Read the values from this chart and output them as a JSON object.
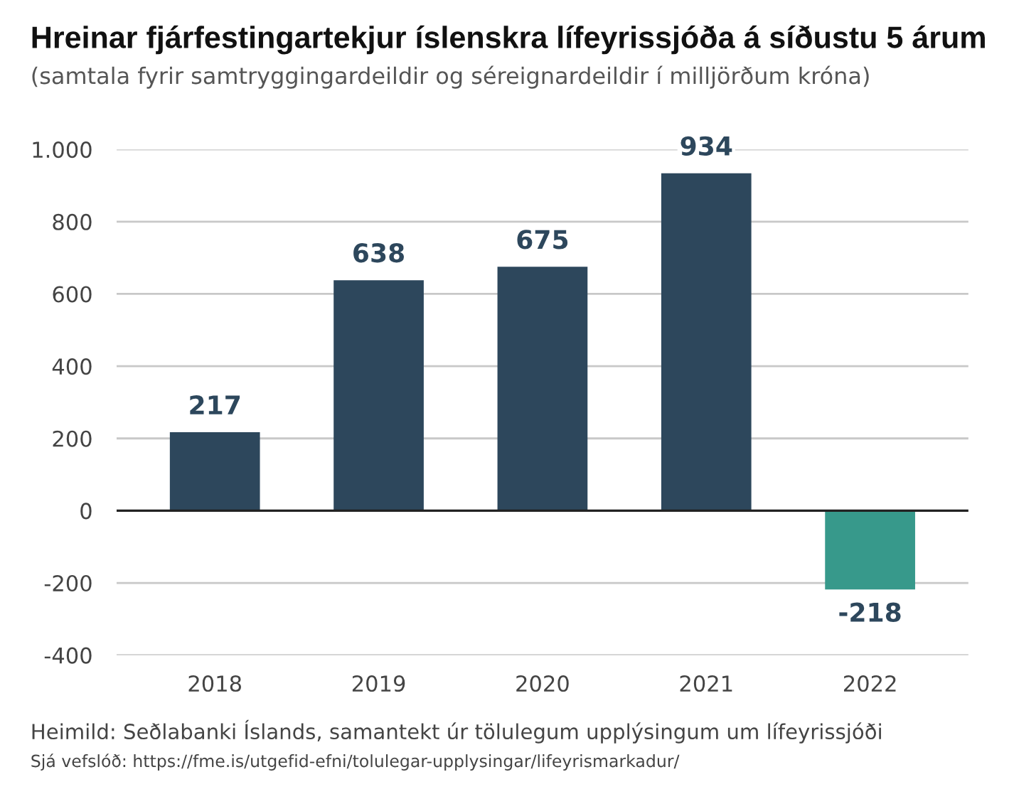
{
  "chart_data": {
    "type": "bar",
    "title": "Hreinar fjárfestingartekjur íslenskra lífeyrissjóða á síðustu 5 árum",
    "subtitle": "(samtala fyrir samtryggingardeildir og séreignardeildir í milljörðum króna)",
    "categories": [
      "2018",
      "2019",
      "2020",
      "2021",
      "2022"
    ],
    "values": [
      217,
      638,
      675,
      934,
      -218
    ],
    "colors": [
      "#2d475c",
      "#2d475c",
      "#2d475c",
      "#2d475c",
      "#37998b"
    ],
    "ylim": [
      -400,
      1000
    ],
    "yticks": [
      -400,
      -200,
      0,
      200,
      400,
      600,
      800,
      {
        "value": 1000,
        "label": "1.000"
      }
    ],
    "grid": "y",
    "data_labels": true,
    "ref_lines": [
      {
        "axis": "y",
        "value": 0,
        "color": "#222222"
      }
    ],
    "annotations": [
      "Heimild: Seðlabanki Íslands, samantekt úr tölulegum upplýsingum um lífeyrissjóði",
      "Sjá vefslóð: https://fme.is/utgefid-efni/tolulegar-upplysingar/lifeyrismarkadur/"
    ]
  }
}
